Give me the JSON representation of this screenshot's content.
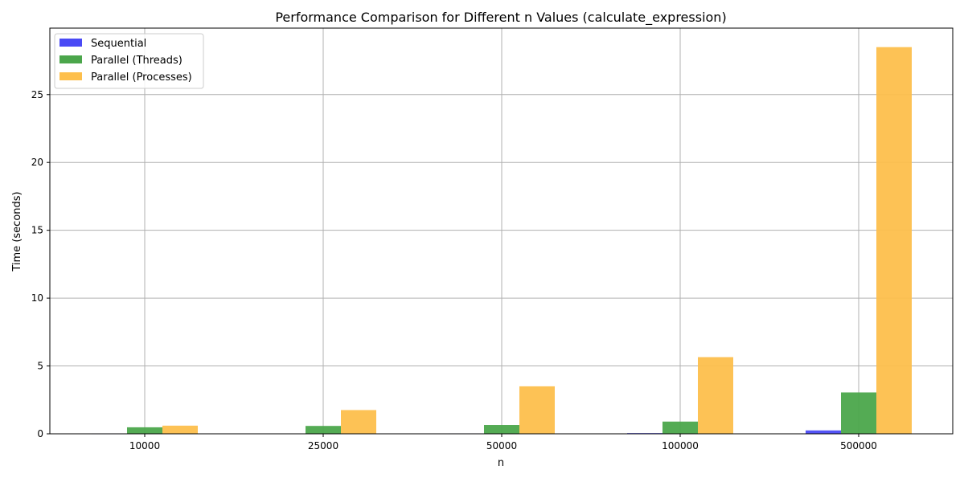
{
  "chart_data": {
    "type": "bar",
    "title": "Performance Comparison for Different n Values (calculate_expression)",
    "xlabel": "n",
    "ylabel": "Time (seconds)",
    "categories": [
      "10000",
      "25000",
      "50000",
      "100000",
      "500000"
    ],
    "ylim": [
      0,
      29.9
    ],
    "yticks": [
      0,
      5,
      10,
      15,
      20,
      25
    ],
    "grid": true,
    "legend_position": "top-left",
    "series": [
      {
        "name": "Sequential",
        "color": "#4a4af5",
        "values": [
          0.005,
          0.01,
          0.03,
          0.05,
          0.25
        ]
      },
      {
        "name": "Parallel (Threads)",
        "color": "#4ba64b",
        "values": [
          0.48,
          0.58,
          0.65,
          0.9,
          3.05
        ]
      },
      {
        "name": "Parallel (Processes)",
        "color": "#fdbf4c",
        "values": [
          0.6,
          1.75,
          3.5,
          5.65,
          28.5
        ]
      }
    ]
  }
}
